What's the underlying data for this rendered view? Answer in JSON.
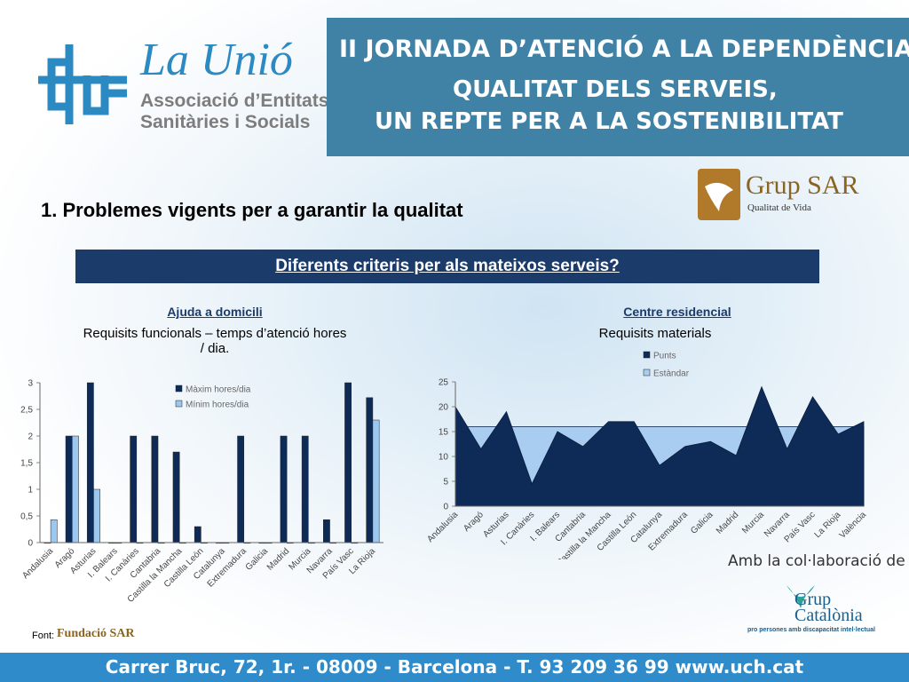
{
  "header": {
    "logo_name": "La Unió",
    "logo_line1": "Associació d’Entitats",
    "logo_line2": "Sanitàries i Socials",
    "banner_line1": "II JORNADA D’ATENCIÓ A LA DEPENDÈNCIA",
    "banner_line2": "QUALITAT DELS SERVEIS,",
    "banner_line3": "UN REPTE PER A LA SOSTENIBILITAT"
  },
  "sponsor": {
    "name": "Grup SAR",
    "tagline": "Qualitat de Vida"
  },
  "heading": "1. Problemes vigents per a garantir la qualitat",
  "subheading": "Diferents criteris per als mateixos serveis?",
  "chart_data": [
    {
      "type": "bar",
      "title": "Ajuda a domicili",
      "subtitle": "Requisits funcionals – temps d’atenció hores / dia.",
      "categories": [
        "Andalusia",
        "Aragó",
        "Asturias",
        "I. Balears",
        "I. Canàries",
        "Cantabria",
        "Castilla la Mancha",
        "Castilla León",
        "Catalunya",
        "Extremadura",
        "Galicia",
        "Madrid",
        "Murcia",
        "Navarra",
        "País Vasc",
        "La Rioja"
      ],
      "series": [
        {
          "name": "Màxim hores/dia",
          "color": "#0e2a57",
          "values": [
            0,
            2,
            3,
            0,
            2,
            2,
            1.7,
            0.3,
            0,
            2,
            0,
            2,
            2,
            0.43,
            3,
            2.72
          ]
        },
        {
          "name": "Mínim hores/dia",
          "color": "#9cc8f0",
          "values": [
            0.43,
            2,
            1,
            0,
            0,
            0,
            0,
            0,
            0,
            0,
            0,
            0,
            0,
            0,
            0,
            2.3
          ]
        }
      ],
      "ylim": [
        0,
        3
      ],
      "yticks": [
        0,
        {
          "value": 0.5,
          "label": "0,5"
        },
        1,
        {
          "value": 1.5,
          "label": "1,5"
        },
        2,
        {
          "value": 2.5,
          "label": "2,5"
        },
        3
      ],
      "grid": false
    },
    {
      "type": "area",
      "title": "Centre residencial",
      "subtitle": "Requisits materials",
      "categories": [
        "Andalusia",
        "Aragó",
        "Asturias",
        "I. Canàries",
        "I. Balears",
        "Cantabria",
        "Castilla la Mancha",
        "Castilla León",
        "Catalunya",
        "Extremadura",
        "Galicia",
        "Madrid",
        "Murcia",
        "Navarra",
        "País Vasc",
        "La Rioja",
        "València"
      ],
      "series": [
        {
          "name": "Punts",
          "color": "#0e2a57",
          "values": [
            20,
            11.5,
            19,
            4.5,
            15,
            12,
            17,
            17,
            8.2,
            12,
            13,
            10.2,
            24,
            11.5,
            22,
            14.5,
            17
          ]
        },
        {
          "name": "Estàndar",
          "color": "#a8cdf0",
          "values": [
            16,
            16,
            16,
            16,
            16,
            16,
            16,
            16,
            16,
            16,
            16,
            16,
            16,
            16,
            16,
            16,
            16
          ]
        }
      ],
      "ylim": [
        0,
        25
      ],
      "yticks": [
        0,
        5,
        10,
        15,
        20,
        25
      ],
      "grid": false
    }
  ],
  "collaboration": {
    "text": "Amb la col·laboració de",
    "name": "Grup Catalònia",
    "tagline": "pro persones amb discapacitat intel·lectual"
  },
  "source": {
    "label": "Font:",
    "name": "Fundació SAR"
  },
  "footer": "Carrer Bruc, 72, 1r. - 08009 - Barcelona - T. 93 209 36 99  www.uch.cat"
}
